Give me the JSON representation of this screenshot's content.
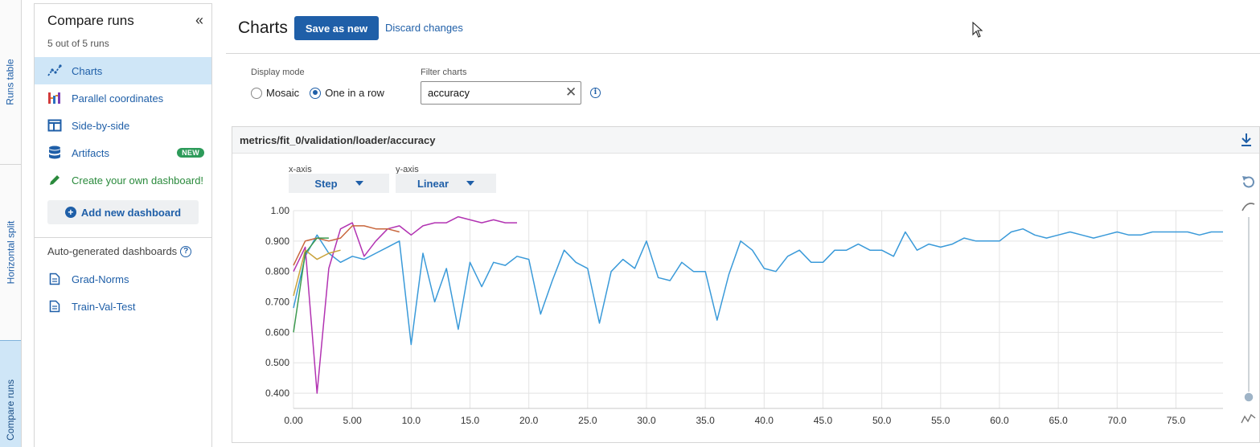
{
  "rail": {
    "tabs": [
      "Runs table",
      "Horizontal split",
      "Compare runs"
    ]
  },
  "sidebar": {
    "title": "Compare runs",
    "subtitle": "5 out of 5 runs",
    "collapse_icon": "«",
    "nav": [
      {
        "label": "Charts",
        "icon": "line-chart-icon",
        "active": true
      },
      {
        "label": "Parallel coordinates",
        "icon": "parallel-coordinates-icon"
      },
      {
        "label": "Side-by-side",
        "icon": "side-by-side-icon"
      },
      {
        "label": "Artifacts",
        "icon": "database-icon",
        "badge": "NEW"
      },
      {
        "label": "Create your own dashboard!",
        "icon": "pencil-icon"
      }
    ],
    "add_dashboard": "Add new dashboard",
    "auto_heading": "Auto-generated dashboards",
    "auto_items": [
      {
        "label": "Grad-Norms",
        "icon": "document-icon"
      },
      {
        "label": "Train-Val-Test",
        "icon": "document-icon"
      }
    ]
  },
  "header": {
    "title": "Charts",
    "save_label": "Save as new",
    "discard_label": "Discard changes"
  },
  "controls": {
    "display_mode_label": "Display mode",
    "mode_options": [
      "Mosaic",
      "One in a row"
    ],
    "mode_selected": "One in a row",
    "filter_label": "Filter charts",
    "filter_value": "accuracy",
    "filter_placeholder": ""
  },
  "card": {
    "title": "metrics/fit_0/validation/loader/accuracy",
    "xaxis_label": "x-axis",
    "xaxis_value": "Step",
    "yaxis_label": "y-axis",
    "yaxis_value": "Linear"
  },
  "chart_data": {
    "type": "line",
    "title": "",
    "xlabel": "",
    "ylabel": "",
    "xlim": [
      0,
      79
    ],
    "ylim": [
      0.35,
      1.0
    ],
    "x_ticks": [
      0,
      5,
      10,
      15,
      20,
      25,
      30,
      35,
      40,
      45,
      50,
      55,
      60,
      65,
      70,
      75
    ],
    "x_tick_labels": [
      "0.00",
      "5.00",
      "10.0",
      "15.0",
      "20.0",
      "25.0",
      "30.0",
      "35.0",
      "40.0",
      "45.0",
      "50.0",
      "55.0",
      "60.0",
      "65.0",
      "70.0",
      "75.0"
    ],
    "y_ticks": [
      0.4,
      0.5,
      0.6,
      0.7,
      0.8,
      0.9,
      1.0
    ],
    "y_tick_labels": [
      "0.400",
      "0.500",
      "0.600",
      "0.700",
      "0.800",
      "0.900",
      "1.00"
    ],
    "grid": true,
    "legend": "none",
    "series": [
      {
        "color": "#3a9ad9",
        "x": [
          0,
          1,
          2,
          3,
          4,
          5,
          6,
          7,
          8,
          9,
          10,
          11,
          12,
          13,
          14,
          15,
          16,
          17,
          18,
          19,
          20,
          21,
          22,
          23,
          24,
          25,
          26,
          27,
          28,
          29,
          30,
          31,
          32,
          33,
          34,
          35,
          36,
          37,
          38,
          39,
          40,
          41,
          42,
          43,
          44,
          45,
          46,
          47,
          48,
          49,
          50,
          51,
          52,
          53,
          54,
          55,
          56,
          57,
          58,
          59,
          60,
          61,
          62,
          63,
          64,
          65,
          66,
          67,
          68,
          69,
          70,
          71,
          72,
          73,
          74,
          75,
          76,
          77,
          78,
          79
        ],
        "values": [
          0.68,
          0.85,
          0.92,
          0.86,
          0.83,
          0.85,
          0.84,
          0.86,
          0.88,
          0.9,
          0.56,
          0.86,
          0.7,
          0.81,
          0.61,
          0.83,
          0.75,
          0.83,
          0.82,
          0.85,
          0.84,
          0.66,
          0.77,
          0.87,
          0.83,
          0.81,
          0.63,
          0.8,
          0.84,
          0.81,
          0.9,
          0.78,
          0.77,
          0.83,
          0.8,
          0.8,
          0.64,
          0.79,
          0.9,
          0.87,
          0.81,
          0.8,
          0.85,
          0.87,
          0.83,
          0.83,
          0.87,
          0.87,
          0.89,
          0.87,
          0.87,
          0.85,
          0.93,
          0.87,
          0.89,
          0.88,
          0.89,
          0.91,
          0.9,
          0.9,
          0.9,
          0.93,
          0.94,
          0.92,
          0.91,
          0.92,
          0.93,
          0.92,
          0.91,
          0.92,
          0.93,
          0.92,
          0.92,
          0.93,
          0.93,
          0.93,
          0.93,
          0.92,
          0.93,
          0.93
        ]
      },
      {
        "color": "#b233b2",
        "x": [
          0,
          1,
          2,
          3,
          4,
          5,
          6,
          7,
          8,
          9,
          10,
          11,
          12,
          13,
          14,
          15,
          16,
          17,
          18,
          19
        ],
        "values": [
          0.8,
          0.88,
          0.4,
          0.81,
          0.94,
          0.96,
          0.85,
          0.9,
          0.94,
          0.95,
          0.92,
          0.95,
          0.96,
          0.96,
          0.98,
          0.97,
          0.96,
          0.97,
          0.96,
          0.96
        ]
      },
      {
        "color": "#c8663c",
        "x": [
          0,
          1,
          2,
          3,
          4,
          5,
          6,
          7,
          8,
          9
        ],
        "values": [
          0.82,
          0.9,
          0.91,
          0.9,
          0.91,
          0.95,
          0.95,
          0.94,
          0.94,
          0.93
        ]
      },
      {
        "color": "#c9a23a",
        "x": [
          0,
          1,
          2,
          3,
          4
        ],
        "values": [
          0.72,
          0.87,
          0.84,
          0.86,
          0.87
        ]
      },
      {
        "color": "#3d9a4f",
        "x": [
          0,
          1,
          2,
          3
        ],
        "values": [
          0.6,
          0.86,
          0.91,
          0.91
        ]
      }
    ]
  }
}
